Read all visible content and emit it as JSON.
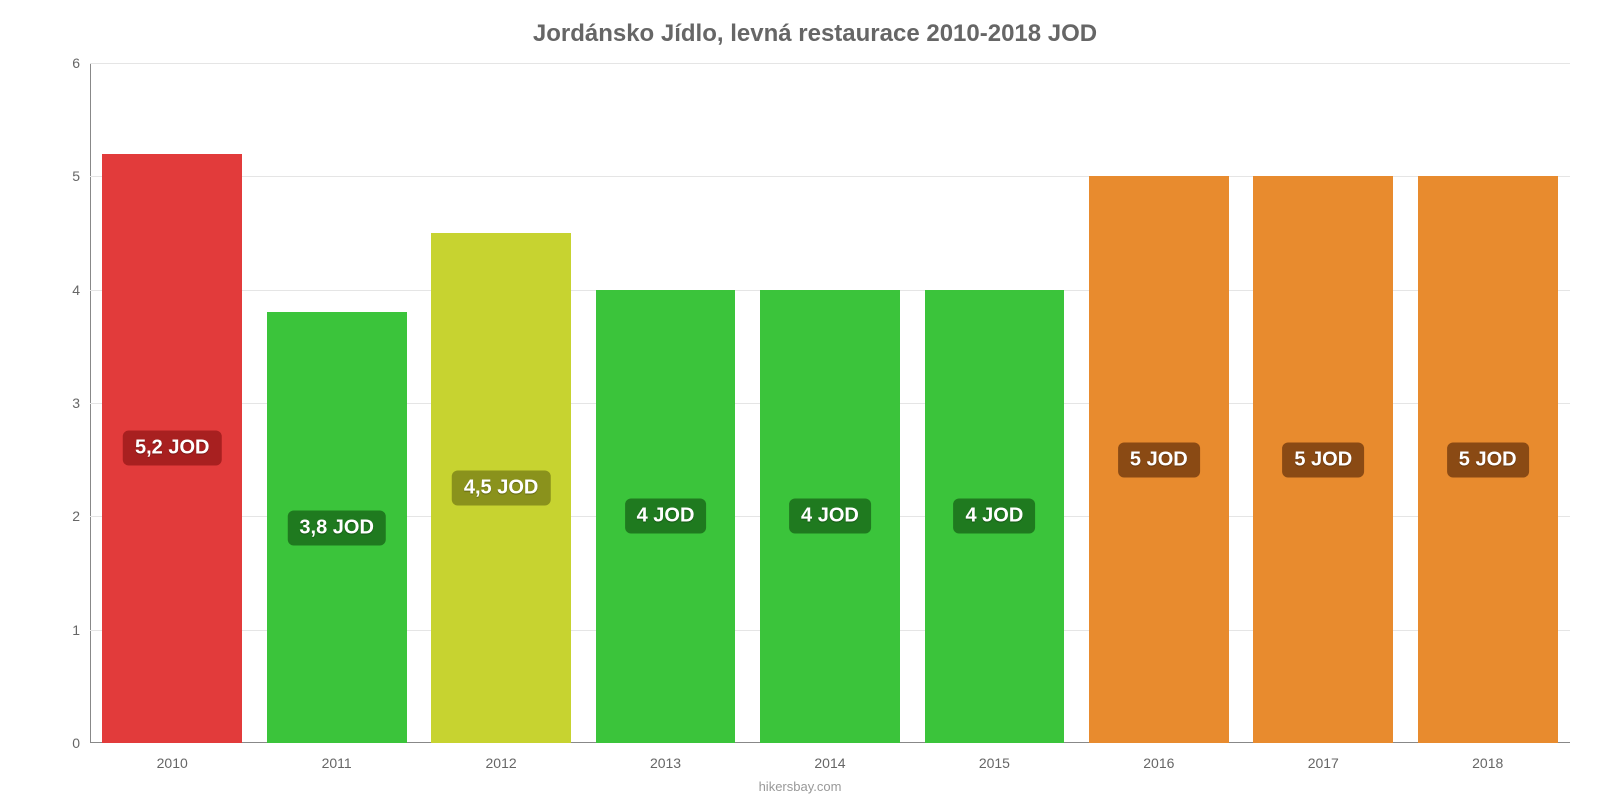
{
  "chart": {
    "type": "bar",
    "title": "Jordánsko Jídlo, levná restaurace 2010-2018 JOD",
    "title_color": "#666666",
    "title_fontsize": 24,
    "background_color": "#ffffff",
    "grid_color": "#e5e5e5",
    "axis_color": "#888888",
    "label_color": "#666666",
    "x_label_fontsize": 14,
    "y_label_fontsize": 14,
    "bar_label_fontsize": 20,
    "bar_width_ratio": 0.85,
    "ylim": [
      0,
      6
    ],
    "y_ticks": [
      0,
      1,
      2,
      3,
      4,
      5,
      6
    ],
    "categories": [
      "2010",
      "2011",
      "2012",
      "2013",
      "2014",
      "2015",
      "2016",
      "2017",
      "2018"
    ],
    "values": [
      5.2,
      3.8,
      4.5,
      4.0,
      4.0,
      4.0,
      5.0,
      5.0,
      5.0
    ],
    "value_labels": [
      "5,2 JOD",
      "3,8 JOD",
      "4,5 JOD",
      "4 JOD",
      "4 JOD",
      "4 JOD",
      "5 JOD",
      "5 JOD",
      "5 JOD"
    ],
    "bar_colors": [
      "#e23b3b",
      "#3bc43b",
      "#c7d330",
      "#3bc43b",
      "#3bc43b",
      "#3bc43b",
      "#e88b2e",
      "#e88b2e",
      "#e88b2e"
    ],
    "bar_label_bg": [
      "#a82020",
      "#1f7a1f",
      "#8a921c",
      "#1f7a1f",
      "#1f7a1f",
      "#1f7a1f",
      "#8a4a14",
      "#8a4a14",
      "#8a4a14"
    ],
    "attribution": "hikersbay.com",
    "attribution_color": "#999999"
  }
}
